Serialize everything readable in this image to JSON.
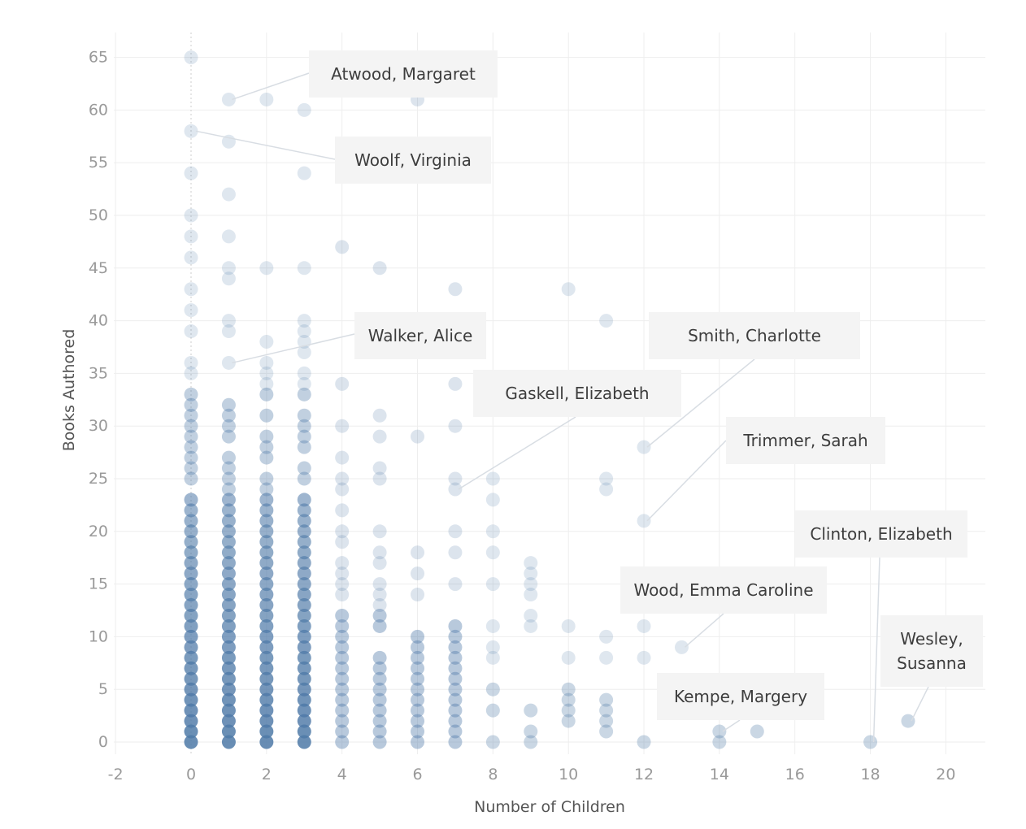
{
  "chart_data": {
    "type": "scatter",
    "xlabel": "Number of Children",
    "ylabel": "Books Authored",
    "xlim": [
      -2,
      21
    ],
    "ylim": [
      -1,
      67
    ],
    "x_ticks": [
      -2,
      0,
      2,
      4,
      6,
      8,
      10,
      12,
      14,
      16,
      18,
      20
    ],
    "y_ticks": [
      0,
      5,
      10,
      15,
      20,
      25,
      30,
      35,
      40,
      45,
      50,
      55,
      60,
      65
    ],
    "grid": true,
    "point_color": "#4e79a7",
    "stacks": [
      {
        "x": 0,
        "y": [
          0,
          1,
          2,
          3,
          4,
          5,
          6,
          7,
          8,
          9,
          10,
          11,
          12,
          13,
          14,
          15,
          16,
          17,
          18,
          19,
          20,
          21,
          22,
          23,
          25,
          26,
          27,
          28,
          29,
          30,
          31,
          32,
          33,
          35,
          36,
          39,
          41,
          43,
          46,
          48,
          50,
          54,
          58,
          65
        ]
      },
      {
        "x": 1,
        "y": [
          0,
          1,
          2,
          3,
          4,
          5,
          6,
          7,
          8,
          9,
          10,
          11,
          12,
          13,
          14,
          15,
          16,
          17,
          18,
          19,
          20,
          21,
          22,
          23,
          24,
          25,
          26,
          27,
          29,
          30,
          31,
          32,
          36,
          39,
          40,
          44,
          45,
          48,
          52,
          57,
          61
        ]
      },
      {
        "x": 2,
        "y": [
          0,
          1,
          2,
          3,
          4,
          5,
          6,
          7,
          8,
          9,
          10,
          11,
          12,
          13,
          14,
          15,
          16,
          17,
          18,
          19,
          20,
          21,
          22,
          23,
          24,
          25,
          27,
          28,
          29,
          31,
          33,
          34,
          35,
          36,
          38,
          45,
          61
        ]
      },
      {
        "x": 3,
        "y": [
          0,
          1,
          2,
          3,
          4,
          5,
          6,
          7,
          8,
          9,
          10,
          11,
          12,
          13,
          14,
          15,
          16,
          17,
          18,
          19,
          20,
          21,
          22,
          23,
          25,
          26,
          28,
          29,
          30,
          31,
          33,
          34,
          35,
          37,
          38,
          39,
          40,
          45,
          54,
          60
        ]
      },
      {
        "x": 4,
        "y": [
          0,
          1,
          2,
          3,
          4,
          5,
          6,
          7,
          8,
          9,
          10,
          11,
          12,
          14,
          15,
          16,
          17,
          19,
          20,
          22,
          24,
          25,
          27,
          30,
          34,
          47
        ]
      },
      {
        "x": 5,
        "y": [
          0,
          1,
          2,
          3,
          4,
          5,
          6,
          7,
          8,
          11,
          12,
          13,
          14,
          15,
          17,
          18,
          20,
          25,
          26,
          29,
          31,
          45
        ]
      },
      {
        "x": 6,
        "y": [
          0,
          1,
          2,
          3,
          4,
          5,
          6,
          7,
          8,
          9,
          10,
          14,
          16,
          18,
          29,
          61
        ]
      },
      {
        "x": 7,
        "y": [
          0,
          1,
          2,
          3,
          4,
          5,
          6,
          7,
          8,
          9,
          10,
          11,
          15,
          18,
          20,
          24,
          25,
          30,
          34,
          43
        ]
      },
      {
        "x": 8,
        "y": [
          0,
          3,
          5,
          8,
          9,
          11,
          15,
          18,
          20,
          23,
          25
        ]
      },
      {
        "x": 9,
        "y": [
          0,
          1,
          3,
          11,
          12,
          14,
          15,
          16,
          17
        ]
      },
      {
        "x": 10,
        "y": [
          2,
          3,
          4,
          5,
          8,
          11,
          43
        ]
      },
      {
        "x": 11,
        "y": [
          1,
          2,
          3,
          4,
          8,
          10,
          24,
          25,
          40
        ]
      },
      {
        "x": 12,
        "y": [
          0,
          8,
          11,
          21,
          28
        ]
      },
      {
        "x": 13,
        "y": [
          9
        ]
      },
      {
        "x": 14,
        "y": [
          0,
          1
        ]
      },
      {
        "x": 15,
        "y": [
          1
        ]
      },
      {
        "x": 18,
        "y": [
          0
        ]
      },
      {
        "x": 19,
        "y": [
          2
        ]
      }
    ],
    "annotations": [
      {
        "label": "Atwood, Margaret",
        "x": 1,
        "y": 61
      },
      {
        "label": "Woolf, Virginia",
        "x": 0,
        "y": 58
      },
      {
        "label": "Walker, Alice",
        "x": 1,
        "y": 36
      },
      {
        "label": "Gaskell, Elizabeth",
        "x": 7,
        "y": 24
      },
      {
        "label": "Smith, Charlotte",
        "x": 12,
        "y": 28
      },
      {
        "label": "Trimmer, Sarah",
        "x": 12,
        "y": 21
      },
      {
        "label": "Clinton, Elizabeth",
        "x": 18,
        "y": 0
      },
      {
        "label": "Wood, Emma Caroline",
        "x": 13,
        "y": 9
      },
      {
        "label": "Kempe, Margery",
        "x": 14,
        "y": 1
      },
      {
        "label": "Wesley,\nSusanna",
        "x": 19,
        "y": 2
      }
    ]
  }
}
